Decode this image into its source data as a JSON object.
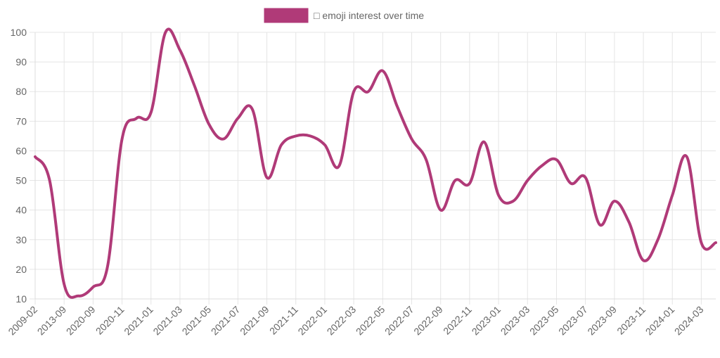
{
  "chart_data": {
    "type": "line",
    "title": "",
    "legend": {
      "label": "□ emoji interest over time",
      "placement": "top-center"
    },
    "series_color": "#b03a78",
    "xlabel": "",
    "ylabel": "",
    "ylim": [
      10,
      100
    ],
    "yticks": [
      10,
      20,
      30,
      40,
      50,
      60,
      70,
      80,
      90,
      100
    ],
    "grid": true,
    "categories": [
      "2009-02",
      "",
      "2013-09",
      "",
      "2020-09",
      "",
      "2020-11",
      "",
      "2021-01",
      "",
      "2021-03",
      "",
      "2021-05",
      "",
      "2021-07",
      "",
      "2021-09",
      "",
      "2021-11",
      "",
      "2022-01",
      "",
      "2022-03",
      "",
      "2022-05",
      "",
      "2022-07",
      "",
      "2022-09",
      "",
      "2022-11",
      "",
      "2023-01",
      "",
      "2023-03",
      "",
      "2023-05",
      "",
      "2023-07",
      "",
      "2023-09",
      "",
      "2023-11",
      "",
      "2024-01",
      "",
      "2024-03",
      ""
    ],
    "series": [
      {
        "name": "□ emoji interest over time",
        "values": [
          58,
          50,
          15,
          11,
          14,
          21,
          64,
          71,
          73,
          100,
          94,
          82,
          69,
          64,
          71,
          74,
          51,
          62,
          65,
          65,
          62,
          55,
          80,
          80,
          87,
          75,
          64,
          57,
          40,
          50,
          49,
          63,
          45,
          43,
          50,
          55,
          57,
          49,
          51,
          35,
          43,
          36,
          23,
          30,
          45,
          58,
          29,
          29
        ]
      }
    ]
  }
}
